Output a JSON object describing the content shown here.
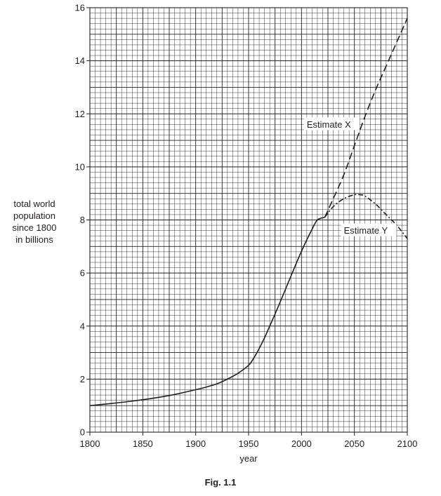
{
  "chart_data": {
    "type": "line",
    "ylabel_lines": [
      "total world",
      "population",
      "since 1800",
      "in billions"
    ],
    "xlabel": "year",
    "xlim": [
      1800,
      2100
    ],
    "ylim": [
      0,
      16
    ],
    "x_ticks": [
      1800,
      1850,
      1900,
      1950,
      2000,
      2050,
      2100
    ],
    "y_ticks": [
      0,
      2,
      4,
      6,
      8,
      10,
      12,
      14,
      16
    ],
    "grid": true,
    "series": [
      {
        "style": "solid",
        "x": [
          1800,
          1820,
          1840,
          1860,
          1880,
          1900,
          1910,
          1920,
          1930,
          1940,
          1950,
          1955,
          1960,
          1965,
          1970,
          1975,
          1980,
          1985,
          1990,
          1995,
          2000,
          2005,
          2010,
          2015,
          2022
        ],
        "y": [
          1.0,
          1.08,
          1.17,
          1.28,
          1.42,
          1.6,
          1.7,
          1.82,
          2.0,
          2.22,
          2.52,
          2.8,
          3.15,
          3.55,
          4.0,
          4.45,
          4.92,
          5.4,
          5.88,
          6.36,
          6.82,
          7.25,
          7.65,
          8.0,
          8.1
        ]
      },
      {
        "name": "Estimate X",
        "style": "dashed",
        "x": [
          2022,
          2030,
          2040,
          2050,
          2060,
          2070,
          2080,
          2090,
          2100
        ],
        "y": [
          8.1,
          8.8,
          9.7,
          10.8,
          11.9,
          12.9,
          13.8,
          14.7,
          15.6
        ]
      },
      {
        "name": "Estimate Y",
        "style": "dashdot",
        "x": [
          2022,
          2030,
          2040,
          2050,
          2055,
          2060,
          2070,
          2080,
          2090,
          2100
        ],
        "y": [
          8.1,
          8.5,
          8.8,
          8.95,
          8.95,
          8.9,
          8.6,
          8.2,
          7.8,
          7.3
        ]
      }
    ],
    "annotations": [
      "Estimate X",
      "Estimate Y"
    ]
  },
  "caption": "Fig. 1.1"
}
